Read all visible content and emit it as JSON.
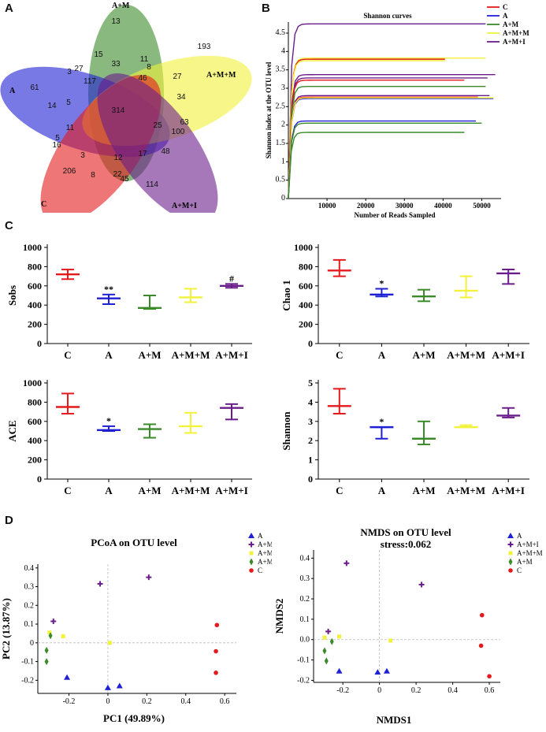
{
  "panel_letters": {
    "a": "A",
    "b": "B",
    "c": "C",
    "d": "D"
  },
  "colors": {
    "C": "#e41a1c",
    "A": "#1f1fd6",
    "A+M": "#3a8a2a",
    "A+M+M": "#f2f23a",
    "A+M+I": "#6a1d8a"
  },
  "chart_data": [
    {
      "type": "venn",
      "sets": [
        "A+M",
        "A",
        "A+M+M",
        "C",
        "A+M+I"
      ],
      "regions": [
        "13",
        "61",
        "193",
        "206",
        "114",
        "15",
        "33",
        "11",
        "8",
        "27",
        "46",
        "3",
        "27",
        "117",
        "5",
        "14",
        "34",
        "314",
        "25",
        "63",
        "100",
        "11",
        "5",
        "16",
        "3",
        "12",
        "17",
        "48",
        "8",
        "22",
        "45"
      ]
    },
    {
      "type": "line",
      "title": "Shannon curves",
      "xlabel": "Number of Reads Sampled",
      "ylabel": "Shannon index at the OTU level",
      "xticks": [
        "10000",
        "20000",
        "30000",
        "40000",
        "50000"
      ],
      "yticks": [
        "0",
        "0.5",
        "1",
        "1.5",
        "2",
        "2.5",
        "3",
        "3.5",
        "4",
        "4.5"
      ],
      "xlim": [
        0,
        55000
      ],
      "ylim": [
        0,
        4.8
      ],
      "legend": [
        "C",
        "A",
        "A+M",
        "A+M+M",
        "A+M+I"
      ],
      "series": [
        {
          "name": "A+M+I",
          "plateau": 4.75,
          "end": 51000
        },
        {
          "name": "A+M+M",
          "plateau": 3.82,
          "end": 51000
        },
        {
          "name": "C",
          "plateau": 3.79,
          "end": 40500
        },
        {
          "name": "A+M+M",
          "plateau": 3.75,
          "end": 40500
        },
        {
          "name": "A+M+I",
          "plateau": 3.37,
          "end": 53500
        },
        {
          "name": "A+M+I",
          "plateau": 3.28,
          "end": 51500
        },
        {
          "name": "C",
          "plateau": 3.22,
          "end": 45500
        },
        {
          "name": "A+M",
          "plateau": 3.05,
          "end": 51000
        },
        {
          "name": "A+M+I",
          "plateau": 2.8,
          "end": 52000
        },
        {
          "name": "C",
          "plateau": 2.76,
          "end": 49000
        },
        {
          "name": "A",
          "plateau": 2.72,
          "end": 53000
        },
        {
          "name": "A+M+M",
          "plateau": 2.74,
          "end": 53000
        },
        {
          "name": "A",
          "plateau": 2.11,
          "end": 48500
        },
        {
          "name": "A+M",
          "plateau": 2.05,
          "end": 50000
        },
        {
          "name": "A+M",
          "plateau": 1.8,
          "end": 45500
        }
      ]
    },
    {
      "type": "bar",
      "ylabel": "Sobs",
      "categories": [
        "C",
        "A",
        "A+M",
        "A+M+M",
        "A+M+I"
      ],
      "series": [
        {
          "mean": [
            720,
            470,
            370,
            480,
            600
          ],
          "low": [
            670,
            410,
            360,
            430,
            580
          ],
          "high": [
            770,
            510,
            500,
            570,
            620
          ]
        }
      ],
      "annotations": [
        "",
        "**",
        "",
        "",
        "#"
      ],
      "ylim": [
        0,
        1000
      ],
      "yticks": [
        "0",
        "200",
        "400",
        "600",
        "800",
        "1000"
      ]
    },
    {
      "type": "bar",
      "ylabel": "Chao 1",
      "categories": [
        "C",
        "A",
        "A+M",
        "A+M+M",
        "A+M+I"
      ],
      "series": [
        {
          "mean": [
            760,
            510,
            490,
            550,
            730
          ],
          "low": [
            700,
            490,
            440,
            480,
            620
          ],
          "high": [
            870,
            570,
            560,
            700,
            770
          ]
        }
      ],
      "annotations": [
        "",
        "*",
        "",
        "",
        ""
      ],
      "ylim": [
        0,
        1000
      ],
      "yticks": [
        "0",
        "200",
        "400",
        "600",
        "800",
        "1000"
      ]
    },
    {
      "type": "bar",
      "ylabel": "ACE",
      "categories": [
        "C",
        "A",
        "A+M",
        "A+M+M",
        "A+M+I"
      ],
      "series": [
        {
          "mean": [
            750,
            510,
            520,
            550,
            740
          ],
          "low": [
            680,
            500,
            430,
            480,
            620
          ],
          "high": [
            890,
            550,
            570,
            690,
            780
          ]
        }
      ],
      "annotations": [
        "",
        "*",
        "",
        "",
        ""
      ],
      "ylim": [
        0,
        1000
      ],
      "yticks": [
        "0",
        "200",
        "400",
        "600",
        "800",
        "1000"
      ]
    },
    {
      "type": "bar",
      "ylabel": "Shannon",
      "categories": [
        "C",
        "A",
        "A+M",
        "A+M+M",
        "A+M+I"
      ],
      "series": [
        {
          "mean": [
            3.8,
            2.7,
            2.1,
            2.7,
            3.3
          ],
          "low": [
            3.4,
            2.1,
            1.8,
            2.7,
            3.2
          ],
          "high": [
            4.7,
            2.7,
            3.0,
            2.8,
            3.7
          ]
        }
      ],
      "annotations": [
        "",
        "*",
        "",
        "",
        ""
      ],
      "ylim": [
        0,
        5
      ],
      "yticks": [
        "0",
        "1",
        "2",
        "3",
        "4",
        "5"
      ]
    },
    {
      "type": "scatter",
      "title": "PCoA on OTU level",
      "xlabel": "PC1 (49.89%)",
      "ylabel": "PC2 (13.87%)",
      "xticks": [
        "-0.2",
        "0",
        "0.2",
        "0.4",
        "0.6"
      ],
      "yticks": [
        "-0.2",
        "-0.1",
        "0",
        "0.1",
        "0.2",
        "0.3",
        "0.4"
      ],
      "xlim": [
        -0.36,
        0.66
      ],
      "ylim": [
        -0.27,
        0.42
      ],
      "legend": [
        "A",
        "A+M+I",
        "A+M+M",
        "A+M",
        "C"
      ],
      "points": [
        {
          "g": "A",
          "x": -0.21,
          "y": -0.185
        },
        {
          "g": "A",
          "x": 0.0,
          "y": -0.24
        },
        {
          "g": "A",
          "x": 0.06,
          "y": -0.23
        },
        {
          "g": "A+M+I",
          "x": -0.04,
          "y": 0.315
        },
        {
          "g": "A+M+I",
          "x": 0.21,
          "y": 0.35
        },
        {
          "g": "A+M+I",
          "x": -0.28,
          "y": 0.115
        },
        {
          "g": "A+M+M",
          "x": -0.3,
          "y": 0.055
        },
        {
          "g": "A+M+M",
          "x": -0.23,
          "y": 0.035
        },
        {
          "g": "A+M+M",
          "x": 0.01,
          "y": 0.0
        },
        {
          "g": "A+M",
          "x": -0.295,
          "y": 0.038
        },
        {
          "g": "A+M",
          "x": -0.315,
          "y": -0.04
        },
        {
          "g": "A+M",
          "x": -0.315,
          "y": -0.1
        },
        {
          "g": "C",
          "x": 0.56,
          "y": 0.095
        },
        {
          "g": "C",
          "x": 0.555,
          "y": -0.045
        },
        {
          "g": "C",
          "x": 0.555,
          "y": -0.16
        }
      ]
    },
    {
      "type": "scatter",
      "title": "NMDS on OTU level",
      "subtitle": "stress:0.062",
      "xlabel": "NMDS1",
      "ylabel": "NMDS2",
      "xticks": [
        "-0.2",
        "0",
        "0.2",
        "0.4",
        "0.6"
      ],
      "yticks": [
        "-0.2",
        "-0.1",
        "0.0",
        "0.1",
        "0.2",
        "0.3",
        "0.4"
      ],
      "xlim": [
        -0.36,
        0.66
      ],
      "ylim": [
        -0.21,
        0.44
      ],
      "legend": [
        "A",
        "A+M+I",
        "A+M+M",
        "A+M",
        "C"
      ],
      "points": [
        {
          "g": "A",
          "x": -0.22,
          "y": -0.155
        },
        {
          "g": "A",
          "x": -0.01,
          "y": -0.16
        },
        {
          "g": "A",
          "x": 0.04,
          "y": -0.155
        },
        {
          "g": "A+M+I",
          "x": -0.18,
          "y": 0.375
        },
        {
          "g": "A+M+I",
          "x": 0.23,
          "y": 0.27
        },
        {
          "g": "A+M+I",
          "x": -0.28,
          "y": 0.04
        },
        {
          "g": "A+M+M",
          "x": -0.3,
          "y": 0.01
        },
        {
          "g": "A+M+M",
          "x": -0.22,
          "y": 0.015
        },
        {
          "g": "A+M+M",
          "x": 0.06,
          "y": -0.005
        },
        {
          "g": "A+M",
          "x": -0.26,
          "y": -0.01
        },
        {
          "g": "A+M",
          "x": -0.3,
          "y": -0.055
        },
        {
          "g": "A+M",
          "x": -0.29,
          "y": -0.105
        },
        {
          "g": "C",
          "x": 0.56,
          "y": 0.12
        },
        {
          "g": "C",
          "x": 0.555,
          "y": -0.03
        },
        {
          "g": "C",
          "x": 0.6,
          "y": -0.18
        }
      ]
    }
  ]
}
